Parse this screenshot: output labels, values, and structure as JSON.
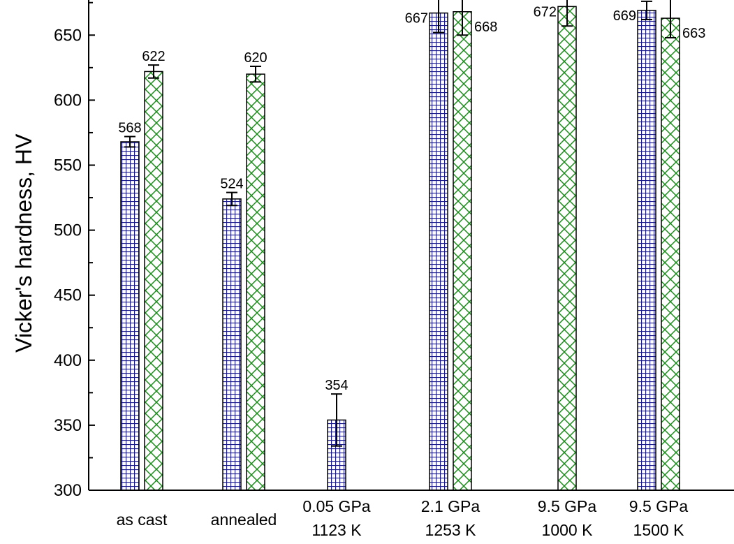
{
  "chart_data": {
    "type": "bar",
    "title": "",
    "xlabel": "",
    "ylabel": "Vicker's hardness, HV",
    "ylim": [
      300,
      680
    ],
    "yticks": [
      "300",
      "350",
      "400",
      "450",
      "500",
      "550",
      "600",
      "650"
    ],
    "grid": false,
    "categories": [
      [
        "as cast"
      ],
      [
        "annealed"
      ],
      [
        "0.05 GPa",
        "1123 K"
      ],
      [
        "2.1 GPa",
        "1253 K"
      ],
      [
        "9.5 GPa",
        "1000 K"
      ],
      [
        "9.5 GPa",
        "1500 K"
      ]
    ],
    "series": [
      {
        "color": "#1a1a8c",
        "values": [
          568,
          524,
          354,
          667,
          null,
          669
        ],
        "labels": [
          "568",
          "524",
          "354",
          "667",
          "",
          "669"
        ],
        "error": [
          4,
          5,
          20,
          15,
          null,
          7
        ]
      },
      {
        "color": "#1a8c1a",
        "values": [
          622,
          620,
          null,
          668,
          672,
          663
        ],
        "labels": [
          "622",
          "620",
          "",
          "668",
          "672",
          "663"
        ],
        "error": [
          5,
          6,
          null,
          18,
          15,
          15
        ]
      }
    ]
  }
}
